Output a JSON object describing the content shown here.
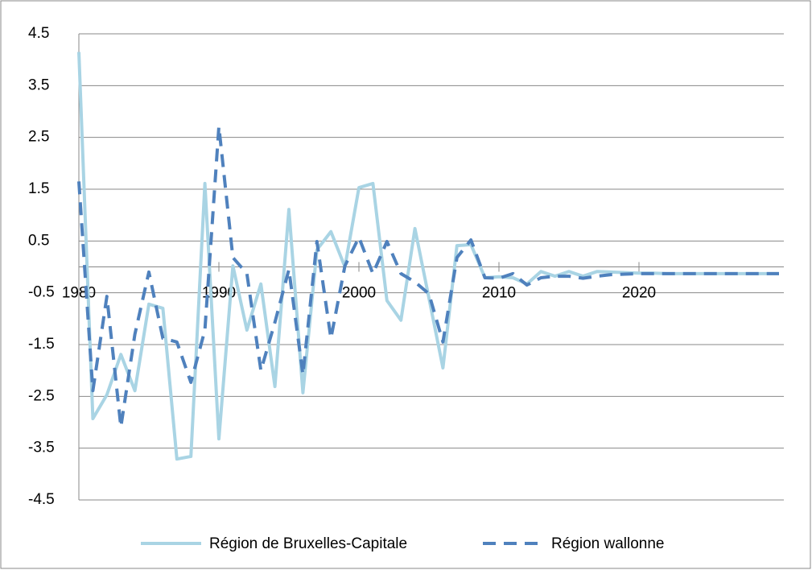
{
  "chart_data": {
    "type": "line",
    "x": [
      1980,
      1981,
      1982,
      1983,
      1984,
      1985,
      1986,
      1987,
      1988,
      1989,
      1990,
      1991,
      1992,
      1993,
      1994,
      1995,
      1996,
      1997,
      1998,
      1999,
      2000,
      2001,
      2002,
      2003,
      2004,
      2005,
      2006,
      2007,
      2008,
      2009,
      2010,
      2011,
      2012,
      2013,
      2014,
      2015,
      2016,
      2017,
      2018,
      2019,
      2020,
      2021,
      2022,
      2023,
      2024,
      2025,
      2026,
      2027,
      2028,
      2029,
      2030
    ],
    "series": [
      {
        "name": "Région de Bruxelles-Capitale",
        "color": "#a9d4e4",
        "dash": false,
        "values": [
          4.15,
          -2.93,
          -2.47,
          -1.69,
          -2.39,
          -0.72,
          -0.8,
          -3.71,
          -3.66,
          1.61,
          -3.32,
          0.02,
          -1.22,
          -0.33,
          -2.31,
          1.11,
          -2.43,
          0.33,
          0.68,
          0.0,
          1.53,
          1.61,
          -0.65,
          -1.03,
          0.74,
          -0.6,
          -1.95,
          0.41,
          0.43,
          -0.21,
          -0.19,
          -0.21,
          -0.33,
          -0.09,
          -0.18,
          -0.09,
          -0.18,
          -0.09,
          -0.1,
          -0.11,
          -0.12,
          -0.12,
          -0.13,
          -0.13,
          -0.13,
          -0.13,
          -0.13,
          -0.13,
          -0.13,
          -0.13,
          -0.13
        ]
      },
      {
        "name": "Région wallonne",
        "color": "#4f81bd",
        "dash": true,
        "values": [
          1.65,
          -2.39,
          -0.57,
          -3.09,
          -1.3,
          -0.1,
          -1.38,
          -1.45,
          -2.23,
          -1.22,
          2.71,
          0.18,
          -0.13,
          -2.0,
          -1.07,
          -0.05,
          -2.08,
          0.49,
          -1.38,
          0.02,
          0.57,
          -0.13,
          0.49,
          -0.13,
          -0.29,
          -0.52,
          -1.45,
          0.18,
          0.52,
          -0.21,
          -0.22,
          -0.13,
          -0.35,
          -0.21,
          -0.18,
          -0.18,
          -0.22,
          -0.18,
          -0.15,
          -0.14,
          -0.13,
          -0.13,
          -0.13,
          -0.13,
          -0.13,
          -0.13,
          -0.13,
          -0.13,
          -0.13,
          -0.13,
          -0.13
        ]
      }
    ],
    "xlim": [
      1980,
      2030
    ],
    "xticks": [
      1980,
      1990,
      2000,
      2010,
      2020
    ],
    "ylim": [
      -4.5,
      4.5
    ],
    "yticks": [
      4.5,
      3.5,
      2.5,
      1.5,
      0.5,
      -0.5,
      -1.5,
      -2.5,
      -3.5,
      -4.5
    ],
    "grid": true,
    "legend": "bottom"
  }
}
